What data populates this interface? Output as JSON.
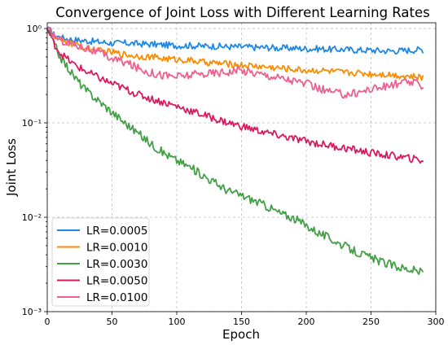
{
  "chart_data": {
    "type": "line",
    "title": "Convergence of Joint Loss with Different Learning Rates",
    "xlabel": "Epoch",
    "ylabel": "Joint Loss",
    "yscale": "log",
    "xlim": [
      0,
      300
    ],
    "ylim": [
      0.001,
      1.15
    ],
    "x_ticks": [
      0,
      50,
      100,
      150,
      200,
      250,
      300
    ],
    "x_tick_labels": [
      "0",
      "50",
      "100",
      "150",
      "200",
      "250",
      "300"
    ],
    "y_ticks": [
      0.001,
      0.01,
      0.1,
      1
    ],
    "y_tick_labels": [
      "10⁻³",
      "10⁻²",
      "10⁻¹",
      "10⁰"
    ],
    "grid": true,
    "legend_position": "lower-left",
    "series": [
      {
        "name": "LR=0.0005",
        "color": "#1e88e5",
        "x": [
          0,
          5,
          10,
          20,
          30,
          40,
          50,
          60,
          70,
          80,
          90,
          100,
          110,
          120,
          130,
          140,
          150,
          160,
          170,
          180,
          190,
          200,
          210,
          220,
          230,
          240,
          250,
          260,
          270,
          280,
          290
        ],
        "y": [
          1.0,
          0.86,
          0.8,
          0.76,
          0.74,
          0.72,
          0.7,
          0.7,
          0.69,
          0.68,
          0.67,
          0.66,
          0.66,
          0.65,
          0.65,
          0.64,
          0.64,
          0.63,
          0.63,
          0.62,
          0.62,
          0.61,
          0.61,
          0.6,
          0.6,
          0.59,
          0.59,
          0.58,
          0.58,
          0.59,
          0.6
        ]
      },
      {
        "name": "LR=0.0010",
        "color": "#fb8c00",
        "x": [
          0,
          5,
          10,
          20,
          30,
          40,
          50,
          60,
          70,
          80,
          90,
          100,
          110,
          120,
          130,
          140,
          150,
          160,
          170,
          180,
          190,
          200,
          210,
          220,
          230,
          240,
          250,
          260,
          270,
          280,
          290
        ],
        "y": [
          1.0,
          0.8,
          0.74,
          0.68,
          0.62,
          0.58,
          0.56,
          0.53,
          0.51,
          0.5,
          0.48,
          0.47,
          0.46,
          0.44,
          0.43,
          0.42,
          0.41,
          0.4,
          0.39,
          0.38,
          0.37,
          0.36,
          0.36,
          0.35,
          0.34,
          0.34,
          0.33,
          0.33,
          0.32,
          0.31,
          0.3
        ]
      },
      {
        "name": "LR=0.0030",
        "color": "#43a047",
        "x": [
          0,
          5,
          10,
          20,
          30,
          40,
          50,
          60,
          70,
          80,
          90,
          100,
          110,
          120,
          130,
          140,
          150,
          160,
          170,
          180,
          190,
          200,
          210,
          220,
          230,
          240,
          250,
          260,
          270,
          280,
          290
        ],
        "y": [
          1.0,
          0.7,
          0.5,
          0.32,
          0.22,
          0.17,
          0.13,
          0.1,
          0.078,
          0.06,
          0.048,
          0.04,
          0.034,
          0.028,
          0.023,
          0.019,
          0.017,
          0.015,
          0.013,
          0.011,
          0.0098,
          0.0082,
          0.0068,
          0.0058,
          0.0049,
          0.0042,
          0.0037,
          0.0033,
          0.003,
          0.0028,
          0.0026
        ]
      },
      {
        "name": "LR=0.0050",
        "color": "#d81b60",
        "x": [
          0,
          5,
          10,
          20,
          30,
          40,
          50,
          60,
          70,
          80,
          90,
          100,
          110,
          120,
          130,
          140,
          150,
          160,
          170,
          180,
          190,
          200,
          210,
          220,
          230,
          240,
          250,
          260,
          270,
          280,
          290
        ],
        "y": [
          1.0,
          0.7,
          0.55,
          0.42,
          0.35,
          0.3,
          0.26,
          0.23,
          0.2,
          0.18,
          0.165,
          0.15,
          0.135,
          0.122,
          0.11,
          0.1,
          0.092,
          0.085,
          0.078,
          0.073,
          0.068,
          0.064,
          0.06,
          0.057,
          0.054,
          0.051,
          0.048,
          0.046,
          0.044,
          0.042,
          0.04
        ]
      },
      {
        "name": "LR=0.0100",
        "color": "#ec6190",
        "x": [
          0,
          5,
          10,
          20,
          30,
          40,
          50,
          60,
          70,
          80,
          90,
          100,
          110,
          120,
          130,
          140,
          150,
          160,
          170,
          180,
          190,
          200,
          210,
          220,
          230,
          240,
          250,
          260,
          270,
          280,
          290
        ],
        "y": [
          1.0,
          0.85,
          0.76,
          0.68,
          0.62,
          0.55,
          0.48,
          0.44,
          0.38,
          0.34,
          0.32,
          0.31,
          0.32,
          0.33,
          0.34,
          0.35,
          0.36,
          0.34,
          0.32,
          0.3,
          0.28,
          0.26,
          0.23,
          0.21,
          0.2,
          0.21,
          0.23,
          0.24,
          0.26,
          0.27,
          0.25
        ]
      }
    ]
  }
}
